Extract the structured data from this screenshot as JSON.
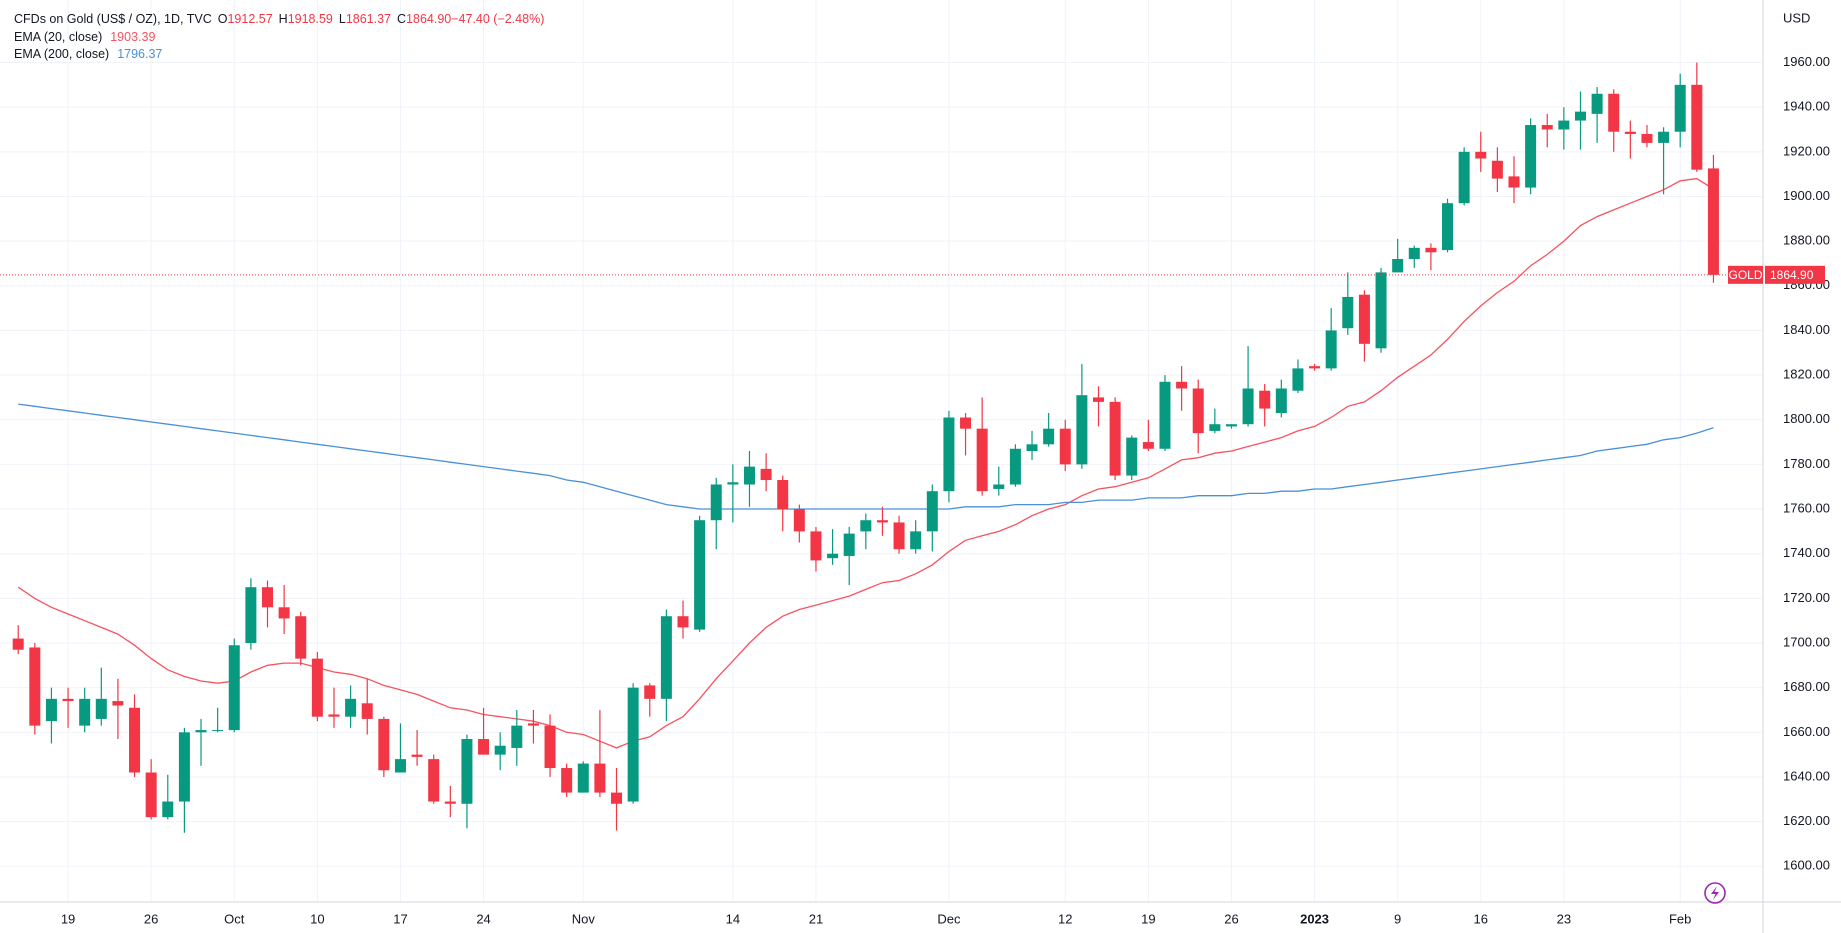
{
  "chart_data": {
    "type": "candlestick",
    "title": "CFDs on Gold (US$ / OZ), 1D, TVC",
    "ohlc_header": [
      {
        "key": "O",
        "text": "1912.57"
      },
      {
        "key": "H",
        "text": "1918.59"
      },
      {
        "key": "L",
        "text": "1861.37"
      },
      {
        "key": "C",
        "text": "1864.90"
      },
      {
        "key": "",
        "text": "−47.40 (−2.48%)"
      }
    ],
    "currency": "USD",
    "symbol": "GOLD",
    "last_price_label": "1864.90",
    "up_color": "#089981",
    "down_color": "#f23645",
    "grid": true,
    "ylim": [
      1584,
      1988
    ],
    "yticks": [
      {
        "value": 1600,
        "label": "1600.00"
      },
      {
        "value": 1620,
        "label": "1620.00"
      },
      {
        "value": 1640,
        "label": "1640.00"
      },
      {
        "value": 1660,
        "label": "1660.00"
      },
      {
        "value": 1680,
        "label": "1680.00"
      },
      {
        "value": 1700,
        "label": "1700.00"
      },
      {
        "value": 1720,
        "label": "1720.00"
      },
      {
        "value": 1740,
        "label": "1740.00"
      },
      {
        "value": 1760,
        "label": "1760.00"
      },
      {
        "value": 1780,
        "label": "1780.00"
      },
      {
        "value": 1800,
        "label": "1800.00"
      },
      {
        "value": 1820,
        "label": "1820.00"
      },
      {
        "value": 1840,
        "label": "1840.00"
      },
      {
        "value": 1860,
        "label": "1860.00"
      },
      {
        "value": 1880,
        "label": "1880.00"
      },
      {
        "value": 1900,
        "label": "1900.00"
      },
      {
        "value": 1920,
        "label": "1920.00"
      },
      {
        "value": 1940,
        "label": "1940.00"
      },
      {
        "value": 1960,
        "label": "1960.00"
      }
    ],
    "categories": [
      null,
      null,
      null,
      "19",
      null,
      null,
      null,
      null,
      "26",
      null,
      null,
      null,
      null,
      "Oct",
      null,
      null,
      null,
      null,
      "10",
      null,
      null,
      null,
      null,
      "17",
      null,
      null,
      null,
      null,
      "24",
      null,
      null,
      null,
      null,
      null,
      "Nov",
      null,
      null,
      null,
      null,
      null,
      null,
      null,
      null,
      "14",
      null,
      null,
      null,
      null,
      "21",
      null,
      null,
      null,
      null,
      null,
      null,
      null,
      "Dec",
      null,
      null,
      null,
      null,
      null,
      null,
      "12",
      null,
      null,
      null,
      null,
      "19",
      null,
      null,
      null,
      null,
      "26",
      null,
      null,
      null,
      null,
      "2023",
      null,
      null,
      null,
      null,
      "9",
      null,
      null,
      null,
      null,
      "16",
      null,
      null,
      null,
      null,
      "23",
      null,
      null,
      null,
      null,
      null,
      null,
      "Feb",
      null,
      null
    ],
    "open": [
      1702,
      1698,
      1665,
      1675,
      1663,
      1666,
      1674,
      1671,
      1642,
      1622,
      1629,
      1660,
      1661,
      1661,
      1700,
      1725,
      1716,
      1712,
      1693,
      1668,
      1667,
      1673,
      1666,
      1642,
      1650,
      1648,
      1629,
      1628,
      1657,
      1650,
      1653,
      1664,
      1663,
      1644,
      1633,
      1646,
      1633,
      1629,
      1681,
      1675,
      1712,
      1706,
      1755,
      1771,
      1771,
      1778,
      1773,
      1760,
      1750,
      1738,
      1739,
      1750,
      1755,
      1754,
      1742,
      1750,
      1768,
      1801,
      1796,
      1769,
      1771,
      1786,
      1789,
      1796,
      1780,
      1810,
      1808,
      1775,
      1790,
      1787,
      1817,
      1814,
      1795,
      1797,
      1798,
      1813,
      1803,
      1813,
      1824,
      1823,
      1841,
      1856,
      1832,
      1866,
      1872,
      1877,
      1876,
      1897,
      1920,
      1916,
      1909,
      1904,
      1932,
      1930,
      1934,
      1937,
      1946,
      1929,
      1928,
      1924,
      1929,
      1950,
      1912.57
    ],
    "high": [
      1708,
      1700,
      1680,
      1680,
      1680,
      1689,
      1684,
      1677,
      1648,
      1641,
      1662,
      1666,
      1671,
      1702,
      1729,
      1728,
      1726,
      1714,
      1696,
      1680,
      1681,
      1684,
      1667,
      1664,
      1661,
      1650,
      1636,
      1659,
      1671,
      1660,
      1670,
      1670,
      1668,
      1646,
      1647,
      1670,
      1644,
      1682,
      1682,
      1715,
      1719,
      1757,
      1774,
      1780,
      1786,
      1785,
      1775,
      1762,
      1752,
      1751,
      1752,
      1758,
      1761,
      1757,
      1755,
      1771,
      1804,
      1803,
      1810,
      1779,
      1789,
      1795,
      1803,
      1800,
      1825,
      1815,
      1810,
      1793,
      1800,
      1820,
      1824,
      1818,
      1805,
      1798,
      1833,
      1816,
      1818,
      1827,
      1825,
      1850,
      1866,
      1858,
      1868,
      1881,
      1878,
      1879,
      1899,
      1922,
      1929,
      1922,
      1918,
      1935,
      1937,
      1940,
      1947,
      1949,
      1948,
      1934,
      1932,
      1931,
      1955,
      1960,
      1918.59
    ],
    "low": [
      1695,
      1659,
      1655,
      1662,
      1660,
      1663,
      1657,
      1640,
      1621,
      1621,
      1615,
      1645,
      1660,
      1660,
      1697,
      1707,
      1704,
      1690,
      1665,
      1662,
      1662,
      1659,
      1640,
      1642,
      1645,
      1628,
      1622,
      1617,
      1650,
      1643,
      1645,
      1655,
      1640,
      1631,
      1633,
      1631,
      1616,
      1628,
      1667,
      1665,
      1702,
      1705,
      1742,
      1754,
      1761,
      1768,
      1750,
      1745,
      1732,
      1735,
      1726,
      1742,
      1748,
      1740,
      1740,
      1741,
      1763,
      1784,
      1766,
      1766,
      1770,
      1782,
      1788,
      1777,
      1778,
      1797,
      1773,
      1773,
      1786,
      1786,
      1804,
      1785,
      1794,
      1796,
      1797,
      1797,
      1801,
      1812,
      1822,
      1822,
      1838,
      1826,
      1830,
      1866,
      1868,
      1867,
      1875,
      1896,
      1911,
      1902,
      1897,
      1901,
      1922,
      1921,
      1921,
      1924,
      1920,
      1917,
      1922,
      1901,
      1922,
      1911,
      1861.37
    ],
    "close": [
      1697,
      1663,
      1675,
      1674,
      1675,
      1675,
      1672,
      1642,
      1622,
      1629,
      1660,
      1661,
      1661,
      1699,
      1725,
      1716,
      1711,
      1693,
      1667,
      1667,
      1675,
      1666,
      1643,
      1648,
      1649,
      1629,
      1628,
      1657,
      1650,
      1654,
      1663,
      1663,
      1644,
      1633,
      1646,
      1633,
      1628,
      1680,
      1675,
      1712,
      1707,
      1755,
      1771,
      1772,
      1779,
      1773,
      1760,
      1750,
      1737,
      1740,
      1749,
      1755,
      1754,
      1742,
      1750,
      1768,
      1801,
      1796,
      1768,
      1771,
      1787,
      1789,
      1796,
      1780,
      1811,
      1808,
      1775,
      1792,
      1787,
      1817,
      1814,
      1794,
      1798,
      1798,
      1814,
      1805,
      1814,
      1823,
      1823,
      1840,
      1855,
      1834,
      1866,
      1872,
      1877,
      1875,
      1897,
      1920,
      1917,
      1908,
      1904,
      1932,
      1930,
      1934,
      1938,
      1946,
      1929,
      1928,
      1924,
      1929,
      1950,
      1912,
      1864.9
    ],
    "series": [
      {
        "name": "EMA (20, close)",
        "last_label": "1903.39",
        "color": "#f7525f",
        "values": [
          1725,
          1720,
          1716,
          1713,
          1710,
          1707,
          1704,
          1699,
          1693,
          1688,
          1685,
          1683,
          1682,
          1683,
          1687,
          1690,
          1691,
          1691,
          1689,
          1687,
          1686,
          1684,
          1681,
          1679,
          1677,
          1674,
          1671,
          1670,
          1668,
          1667,
          1666,
          1665,
          1663,
          1660,
          1659,
          1656,
          1653,
          1656,
          1658,
          1663,
          1667,
          1675,
          1684,
          1692,
          1700,
          1707,
          1712,
          1715,
          1717,
          1719,
          1721,
          1724,
          1727,
          1728,
          1731,
          1735,
          1741,
          1746,
          1748,
          1750,
          1753,
          1757,
          1760,
          1762,
          1766,
          1769,
          1770,
          1772,
          1774,
          1778,
          1782,
          1783,
          1785,
          1786,
          1788,
          1790,
          1792,
          1795,
          1797,
          1801,
          1806,
          1808,
          1813,
          1819,
          1824,
          1829,
          1836,
          1844,
          1851,
          1857,
          1862,
          1869,
          1874,
          1880,
          1887,
          1891,
          1894,
          1897,
          1900,
          1903,
          1907,
          1908,
          1903.39
        ]
      },
      {
        "name": "EMA (200, close)",
        "last_label": "1796.37",
        "color": "#4a90d9",
        "values": [
          1807,
          1806,
          1805,
          1804,
          1803,
          1802,
          1801,
          1800,
          1799,
          1798,
          1797,
          1796,
          1795,
          1794,
          1793,
          1792,
          1791,
          1790,
          1789,
          1788,
          1787,
          1786,
          1785,
          1784,
          1783,
          1782,
          1781,
          1780,
          1779,
          1778,
          1777,
          1776,
          1775,
          1773,
          1772,
          1770,
          1768,
          1766,
          1764,
          1762,
          1761,
          1760,
          1760,
          1760,
          1760,
          1760,
          1760,
          1760,
          1760,
          1760,
          1760,
          1760,
          1760,
          1760,
          1760,
          1760,
          1760,
          1761,
          1761,
          1761,
          1762,
          1762,
          1762,
          1763,
          1763,
          1764,
          1764,
          1764,
          1765,
          1765,
          1765,
          1766,
          1766,
          1766,
          1767,
          1767,
          1768,
          1768,
          1769,
          1769,
          1770,
          1771,
          1772,
          1773,
          1774,
          1775,
          1776,
          1777,
          1778,
          1779,
          1780,
          1781,
          1782,
          1783,
          1784,
          1786,
          1787,
          1788,
          1789,
          1791,
          1792,
          1794,
          1796.37
        ]
      }
    ]
  }
}
